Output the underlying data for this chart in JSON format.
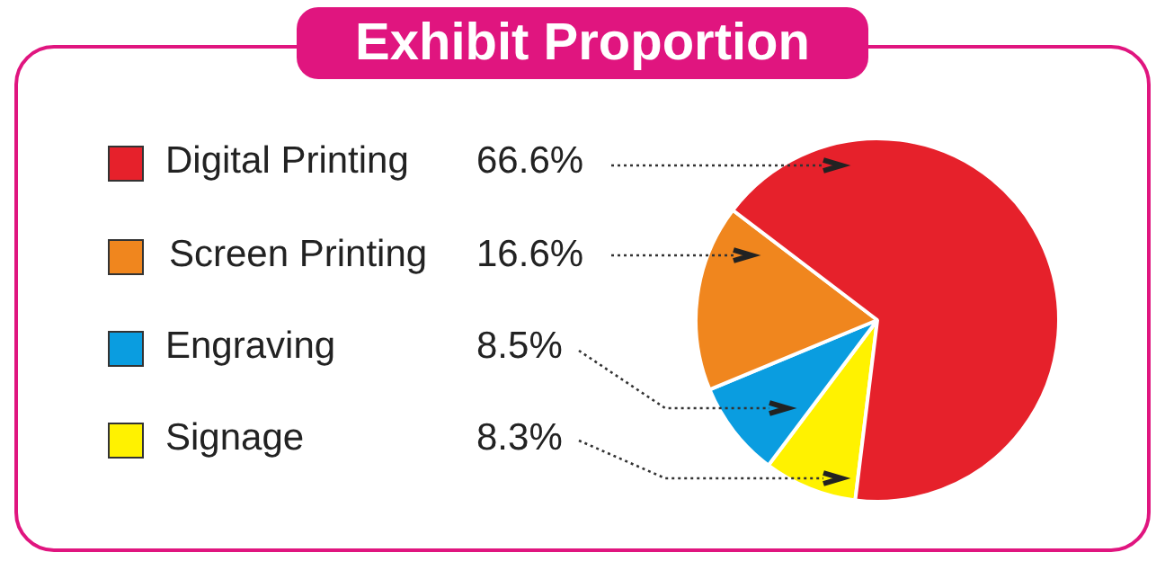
{
  "chart_data": {
    "type": "pie",
    "title": "Exhibit Proportion",
    "categories": [
      "Digital Printing",
      "Screen Printing",
      "Engraving",
      "Signage"
    ],
    "values": [
      66.6,
      16.6,
      8.5,
      8.3
    ],
    "value_labels": [
      "66.6%",
      "16.6%",
      "8.5%",
      "8.3%"
    ],
    "colors": [
      "#e6212b",
      "#f0861e",
      "#0a9de0",
      "#fff200"
    ],
    "legend": "left"
  }
}
